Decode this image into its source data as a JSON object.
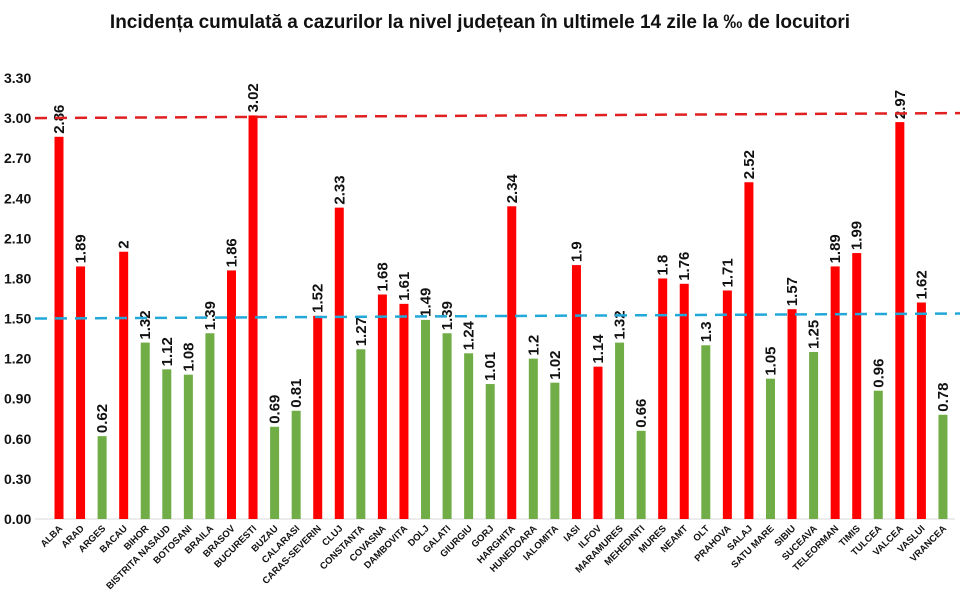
{
  "chart_data": {
    "type": "bar",
    "title": "Incidența cumulată a cazurilor la nivel județean în ultimele 14 zile la ‰ de locuitori",
    "xlabel": "",
    "ylabel": "",
    "ylim": [
      0,
      3.3
    ],
    "yticks": [
      "0.00",
      "0.30",
      "0.60",
      "0.90",
      "1.20",
      "1.50",
      "1.80",
      "2.10",
      "2.40",
      "2.70",
      "3.00",
      "3.30"
    ],
    "grid": false,
    "categories": [
      "ALBA",
      "ARAD",
      "ARGES",
      "BACAU",
      "BIHOR",
      "BISTRITA NASAUD",
      "BOTOSANI",
      "BRAILA",
      "BRASOV",
      "BUCURESTI",
      "BUZAU",
      "CALARASI",
      "CARAS-SEVERIN",
      "CLUJ",
      "CONSTANTA",
      "COVASNA",
      "DAMBOVITA",
      "DOLJ",
      "GALATI",
      "GIURGIU",
      "GORJ",
      "HARGHITA",
      "HUNEDOARA",
      "IALOMITA",
      "IASI",
      "ILFOV",
      "MARAMURES",
      "MEHEDINTI",
      "MURES",
      "NEAMT",
      "OLT",
      "PRAHOVA",
      "SALAJ",
      "SATU MARE",
      "SIBIU",
      "SUCEAVA",
      "TELEORMAN",
      "TIMIS",
      "TULCEA",
      "VALCEA",
      "VASLUI",
      "VRANCEA"
    ],
    "values": [
      2.86,
      1.89,
      0.62,
      2,
      1.32,
      1.12,
      1.08,
      1.39,
      1.86,
      3.02,
      0.69,
      0.81,
      1.52,
      2.33,
      1.27,
      1.68,
      1.61,
      1.49,
      1.39,
      1.24,
      1.01,
      2.34,
      1.2,
      1.02,
      1.9,
      1.14,
      1.32,
      0.66,
      1.8,
      1.76,
      1.3,
      1.71,
      2.52,
      1.05,
      1.57,
      1.25,
      1.89,
      1.99,
      0.96,
      2.97,
      1.62,
      0.78
    ],
    "bar_colors": [
      "red",
      "red",
      "green",
      "red",
      "green",
      "green",
      "green",
      "green",
      "red",
      "red",
      "green",
      "green",
      "red",
      "red",
      "green",
      "red",
      "red",
      "green",
      "green",
      "green",
      "green",
      "red",
      "green",
      "green",
      "red",
      "red",
      "green",
      "green",
      "red",
      "red",
      "green",
      "red",
      "red",
      "green",
      "red",
      "green",
      "red",
      "red",
      "green",
      "red",
      "red",
      "green"
    ],
    "reference_lines": [
      {
        "value": 3.0,
        "color": "#e02020",
        "style": "dashed"
      },
      {
        "value": 1.5,
        "color": "#22a8d8",
        "style": "dashed"
      }
    ],
    "colors": {
      "red": "#ff0000",
      "green": "#70ad47"
    }
  }
}
